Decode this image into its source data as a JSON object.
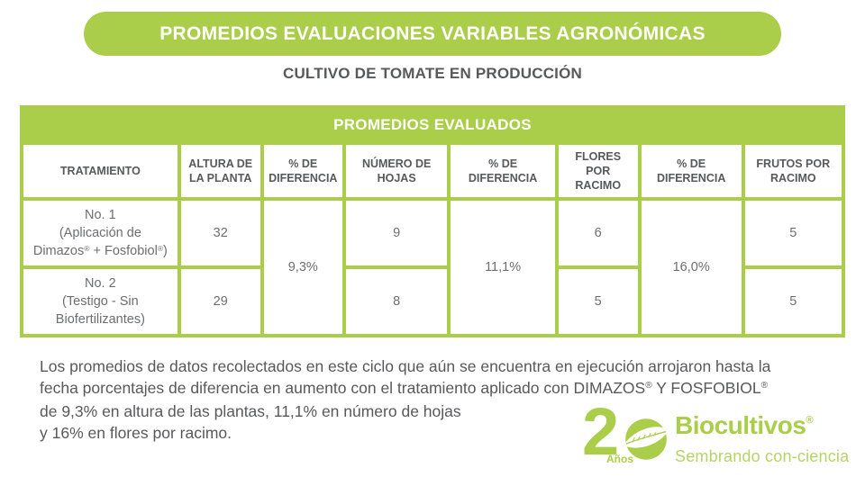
{
  "banner": {
    "title": "PROMEDIOS EVALUACIONES VARIABLES AGRONÓMICAS"
  },
  "subtitle": "CULTIVO DE TOMATE EN PRODUCCIÓN",
  "table": {
    "title": "PROMEDIOS EVALUADOS",
    "columns": [
      "TRATAMIENTO",
      "ALTURA DE LA PLANTA",
      "% DE DIFERENCIA",
      "NÚMERO DE HOJAS",
      "% DE DIFERENCIA",
      "FLORES POR RACIMO",
      "% DE DIFERENCIA",
      "FRUTOS POR RACIMO"
    ],
    "rows": [
      {
        "tratamiento_lines": [
          "No. 1",
          "(Aplicación de",
          "Dimazos® + Fosfobiol®)"
        ],
        "altura": "32",
        "hojas": "9",
        "flores": "6",
        "frutos": "5"
      },
      {
        "tratamiento_lines": [
          "No. 2",
          "(Testigo - Sin",
          "Biofertilizantes)"
        ],
        "altura": "29",
        "hojas": "8",
        "flores": "5",
        "frutos": "5"
      }
    ],
    "diferencia": {
      "altura": "9,3%",
      "hojas": "11,1%",
      "flores": "16,0%"
    }
  },
  "paragraph_lines": [
    "Los promedios de datos recolectados en este ciclo que aún se encuentra en ejecución arrojaron hasta la",
    "fecha porcentajes de diferencia en aumento con el tratamiento aplicado con DIMAZOS® Y FOSFOBIOL®",
    "de 9,3% en altura de las plantas, 11,1% en número de hojas",
    "y 16% en flores por racimo."
  ],
  "logo": {
    "number": "2",
    "anios": "Años",
    "brand": "Biocultivos",
    "registered": "®",
    "tagline": "Sembrando con-ciencia"
  },
  "colors": {
    "green": "#abce4a",
    "green_light": "#b5d466",
    "dark_text": "#58595b",
    "cell_text": "#6d6e70"
  }
}
